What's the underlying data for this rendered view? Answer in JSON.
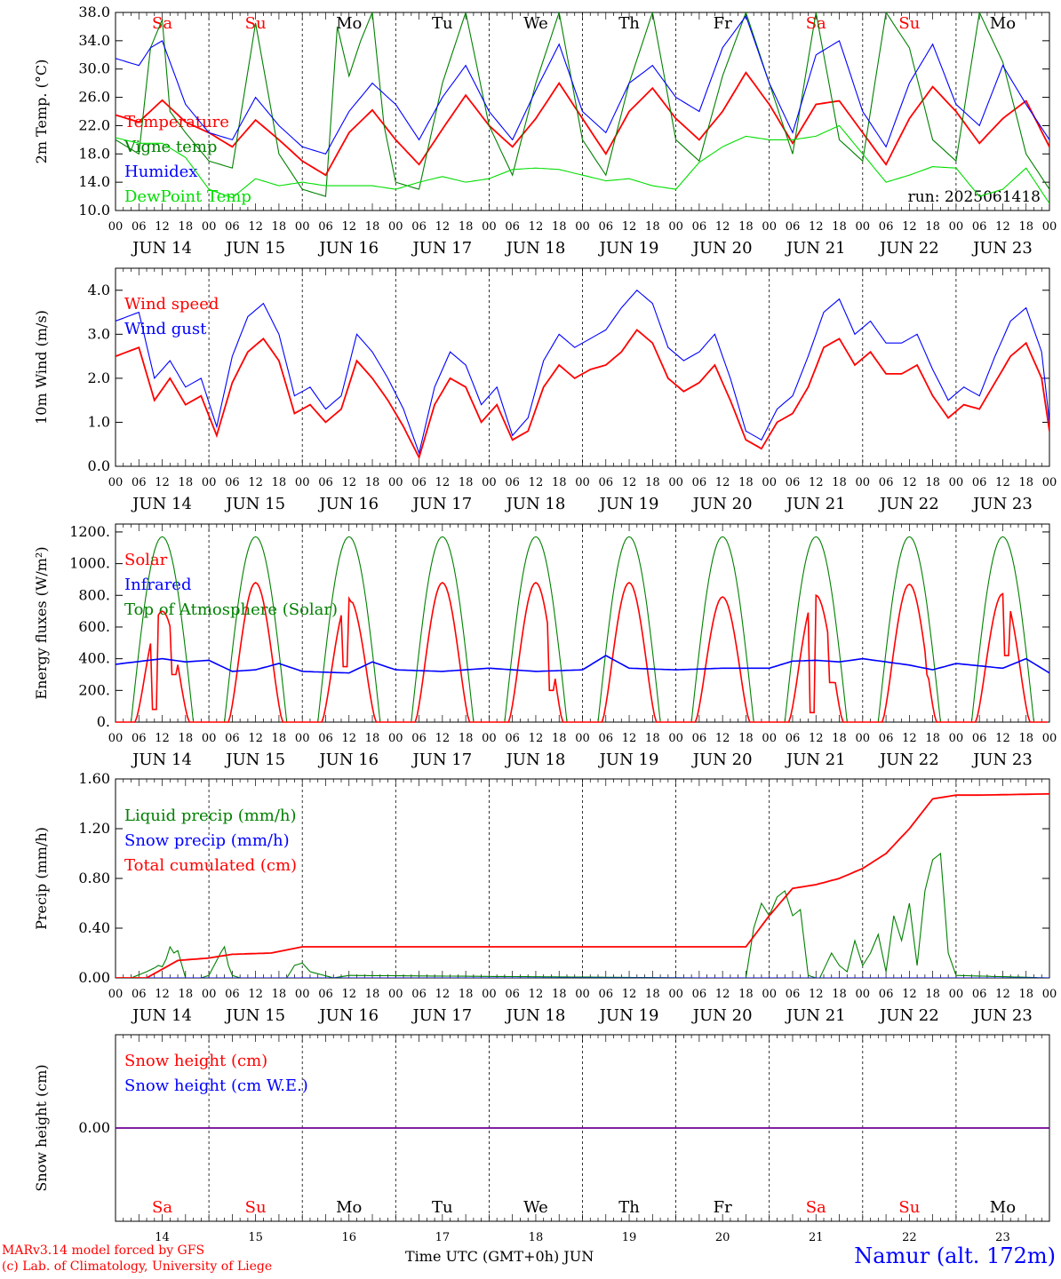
{
  "run": "run: 2025061418",
  "days": [
    "14",
    "15",
    "16",
    "17",
    "18",
    "19",
    "20",
    "21",
    "22",
    "23"
  ],
  "day_month_labels": [
    "JUN 14",
    "JUN 15",
    "JUN 16",
    "JUN 17",
    "JUN 18",
    "JUN 19",
    "JUN 20",
    "JUN 21",
    "JUN 22",
    "JUN 23"
  ],
  "weekday_labels": [
    "Sa",
    "Su",
    "Mo",
    "Tu",
    "We",
    "Th",
    "Fr",
    "Sa",
    "Su",
    "Mo"
  ],
  "weekend_flags": [
    true,
    true,
    false,
    false,
    false,
    false,
    false,
    true,
    true,
    false
  ],
  "hour_ticks": [
    "00",
    "06",
    "12",
    "18"
  ],
  "final_tick": "00",
  "colors": {
    "red": "#ff0000",
    "green": "#008000",
    "blue": "#0000ff",
    "lightgreen": "#00dd00",
    "weekday": "#000000"
  },
  "footer": {
    "line1": "MARv3.14 model forced by GFS",
    "line2": "(c) Lab. of Climatology, University of Liege",
    "xlabel": "Time UTC (GMT+0h) JUN",
    "station": "Namur (alt. 172m)"
  },
  "chart_data": [
    {
      "type": "line",
      "ylabel": "2m Temp. (°C)",
      "ylim": [
        10,
        38
      ],
      "yticks": [
        "10.0",
        "14.0",
        "18.0",
        "22.0",
        "26.0",
        "30.0",
        "34.0",
        "38.0"
      ],
      "x_unit": "hours since JUN 14 00 UTC",
      "series": [
        {
          "name": "Temperature",
          "color": "red",
          "x": [
            0,
            6,
            12,
            18,
            24,
            30,
            36,
            42,
            48,
            54,
            60,
            66,
            72,
            78,
            84,
            90,
            96,
            102,
            108,
            114,
            120,
            126,
            132,
            138,
            144,
            150,
            156,
            162,
            168,
            174,
            180,
            186,
            192,
            198,
            204,
            210,
            216,
            222,
            228,
            234,
            240
          ],
          "values": [
            23.5,
            22.5,
            25.6,
            22.5,
            21,
            19,
            22.8,
            20,
            17,
            15,
            21,
            24.2,
            20,
            16.5,
            21.5,
            26.3,
            22,
            19,
            23,
            28,
            23,
            18,
            24,
            27.3,
            23,
            20,
            24,
            29.5,
            25,
            19.5,
            25,
            25.5,
            21,
            16.5,
            23,
            27.5,
            24,
            19.5,
            23,
            25.5,
            19
          ]
        },
        {
          "name": "Vigne temp",
          "color": "green",
          "x": [
            0,
            6,
            9,
            12,
            14,
            18,
            24,
            30,
            36,
            42,
            48,
            54,
            57,
            60,
            63,
            66,
            69,
            72,
            78,
            84,
            90,
            96,
            102,
            108,
            114,
            120,
            126,
            132,
            138,
            144,
            150,
            156,
            162,
            168,
            174,
            180,
            186,
            192,
            198,
            204,
            210,
            216,
            222,
            228,
            234,
            240
          ],
          "values": [
            20,
            18,
            33,
            37,
            24,
            21,
            17,
            16,
            36.5,
            18,
            13,
            12,
            36,
            29,
            34,
            38,
            22,
            14,
            13,
            28,
            38,
            22,
            15,
            28,
            38,
            20,
            15,
            28,
            38,
            20,
            17,
            29,
            38,
            28,
            18,
            38,
            20,
            17,
            38,
            33,
            20,
            17,
            38,
            31,
            18,
            13
          ]
        },
        {
          "name": "Humidex",
          "color": "blue",
          "x": [
            0,
            6,
            9,
            12,
            18,
            24,
            30,
            36,
            42,
            48,
            54,
            60,
            66,
            72,
            78,
            84,
            90,
            96,
            102,
            108,
            114,
            120,
            126,
            132,
            138,
            144,
            150,
            156,
            162,
            168,
            174,
            180,
            186,
            192,
            198,
            204,
            210,
            216,
            222,
            228,
            234,
            240
          ],
          "values": [
            31.5,
            30.5,
            33,
            34,
            25,
            21,
            20,
            26,
            22,
            19,
            18,
            24,
            28,
            25,
            20,
            26,
            30.5,
            24,
            20,
            27,
            33.5,
            24,
            21,
            28,
            30.5,
            26,
            24,
            33,
            37.5,
            28,
            21,
            32,
            34,
            24,
            19,
            28,
            33.5,
            25,
            22,
            30.5,
            25,
            20
          ]
        },
        {
          "name": "DewPoint Temp",
          "color": "lightgreen",
          "x": [
            0,
            6,
            12,
            18,
            24,
            30,
            36,
            42,
            48,
            54,
            60,
            66,
            72,
            78,
            84,
            90,
            96,
            102,
            108,
            114,
            120,
            126,
            132,
            138,
            144,
            150,
            156,
            162,
            168,
            174,
            180,
            186,
            192,
            198,
            204,
            210,
            216,
            222,
            228,
            234,
            240
          ],
          "values": [
            20.3,
            19.5,
            19.5,
            17.5,
            13,
            11.8,
            14.5,
            13.5,
            14,
            13.5,
            13.5,
            13.5,
            13,
            14,
            14.8,
            14,
            14.5,
            15.8,
            16,
            15.8,
            15,
            14.2,
            14.5,
            13.5,
            13,
            16.8,
            19,
            20.5,
            20,
            20,
            20.5,
            22,
            18,
            14,
            15,
            16.2,
            16,
            12,
            13,
            16,
            11
          ]
        }
      ]
    },
    {
      "type": "line",
      "ylabel": "10m Wind (m/s)",
      "ylim": [
        0,
        4.5
      ],
      "yticks": [
        "0.0",
        "1.0",
        "2.0",
        "3.0",
        "4.0"
      ],
      "x_unit": "hours since JUN 14 00 UTC",
      "series": [
        {
          "name": "Wind speed",
          "color": "red",
          "x": [
            0,
            6,
            10,
            14,
            18,
            22,
            26,
            30,
            34,
            38,
            42,
            46,
            50,
            54,
            58,
            62,
            66,
            70,
            74,
            78,
            82,
            86,
            90,
            94,
            98,
            102,
            106,
            110,
            114,
            118,
            122,
            126,
            130,
            134,
            138,
            142,
            146,
            150,
            154,
            158,
            162,
            166,
            170,
            174,
            178,
            182,
            186,
            190,
            194,
            198,
            202,
            206,
            210,
            214,
            218,
            222,
            226,
            230,
            234,
            238,
            240
          ],
          "values": [
            2.5,
            2.7,
            1.5,
            2,
            1.4,
            1.6,
            0.7,
            1.9,
            2.6,
            2.9,
            2.4,
            1.2,
            1.4,
            1.0,
            1.3,
            2.4,
            2.0,
            1.5,
            0.9,
            0.2,
            1.4,
            2.0,
            1.8,
            1.0,
            1.4,
            0.6,
            0.8,
            1.8,
            2.3,
            2.0,
            2.2,
            2.3,
            2.6,
            3.1,
            2.8,
            2.0,
            1.7,
            1.9,
            2.3,
            1.5,
            0.6,
            0.4,
            1.0,
            1.2,
            1.8,
            2.7,
            2.9,
            2.3,
            2.6,
            2.1,
            2.1,
            2.3,
            1.6,
            1.1,
            1.4,
            1.3,
            1.9,
            2.5,
            2.8,
            2.0,
            0.8
          ]
        },
        {
          "name": "Wind gust",
          "color": "blue",
          "x": [
            0,
            6,
            10,
            14,
            18,
            22,
            26,
            30,
            34,
            38,
            42,
            46,
            50,
            54,
            58,
            62,
            66,
            70,
            74,
            78,
            82,
            86,
            90,
            94,
            98,
            102,
            106,
            110,
            114,
            118,
            122,
            126,
            130,
            134,
            138,
            142,
            146,
            150,
            154,
            158,
            162,
            166,
            170,
            174,
            178,
            182,
            186,
            190,
            194,
            198,
            202,
            206,
            210,
            214,
            218,
            222,
            226,
            230,
            234,
            238,
            240
          ],
          "values": [
            3.3,
            3.5,
            2.0,
            2.4,
            1.8,
            2.0,
            0.9,
            2.5,
            3.4,
            3.7,
            3.0,
            1.6,
            1.8,
            1.3,
            1.6,
            3.0,
            2.6,
            2.0,
            1.3,
            0.3,
            1.8,
            2.6,
            2.3,
            1.4,
            1.8,
            0.7,
            1.1,
            2.4,
            3.0,
            2.7,
            2.9,
            3.1,
            3.6,
            4.0,
            3.7,
            2.7,
            2.4,
            2.6,
            3.0,
            2.0,
            0.8,
            0.6,
            1.3,
            1.6,
            2.5,
            3.5,
            3.8,
            3.0,
            3.3,
            2.8,
            2.8,
            3.0,
            2.2,
            1.5,
            1.8,
            1.6,
            2.5,
            3.3,
            3.6,
            2.6,
            1.0
          ]
        }
      ]
    },
    {
      "type": "line",
      "ylabel": "Energy fluxes (W/m²)",
      "ylim": [
        0,
        1250
      ],
      "yticks": [
        "0.",
        "200.",
        "400.",
        "600.",
        "800.",
        "1000.",
        "1200."
      ],
      "x_unit": "hours since JUN 14 00 UTC",
      "daily_peaks": {
        "toa_peak": 1170,
        "toa_start_hour": 4,
        "toa_end_hour": 20,
        "solar_peaks": [
          700,
          880,
          780,
          880,
          880,
          880,
          790,
          800,
          870,
          810
        ],
        "solar_dips": [
          {
            "day": 0,
            "hour": 10,
            "value": 80
          },
          {
            "day": 0,
            "hour": 15,
            "value": 300
          },
          {
            "day": 2,
            "hour": 11,
            "value": 350
          },
          {
            "day": 2,
            "hour": 13,
            "value": 760
          },
          {
            "day": 4,
            "hour": 16,
            "value": 200
          },
          {
            "day": 7,
            "hour": 11,
            "value": 60
          },
          {
            "day": 7,
            "hour": 14,
            "value": 780
          },
          {
            "day": 7,
            "hour": 16,
            "value": 250
          },
          {
            "day": 8,
            "hour": 17,
            "value": 300
          },
          {
            "day": 9,
            "hour": 13,
            "value": 420
          },
          {
            "day": 9,
            "hour": 15,
            "value": 750
          }
        ]
      },
      "series": [
        {
          "name": "Solar",
          "color": "red",
          "values": []
        },
        {
          "name": "Infrared",
          "color": "blue",
          "x": [
            0,
            12,
            18,
            24,
            30,
            36,
            42,
            48,
            60,
            66,
            72,
            84,
            96,
            102,
            108,
            120,
            126,
            132,
            144,
            156,
            168,
            174,
            180,
            186,
            192,
            204,
            210,
            216,
            228,
            234,
            240
          ],
          "values": [
            365,
            400,
            380,
            390,
            320,
            330,
            370,
            320,
            310,
            380,
            330,
            320,
            340,
            330,
            320,
            330,
            420,
            340,
            330,
            340,
            340,
            385,
            390,
            380,
            400,
            360,
            330,
            370,
            340,
            400,
            310
          ]
        },
        {
          "name": "Top of Atmosphere (Solar)",
          "color": "green",
          "values": []
        }
      ]
    },
    {
      "type": "line",
      "ylabel": "Precip (mm/h)",
      "ylim": [
        0,
        1.6
      ],
      "yticks": [
        "0.00",
        "0.40",
        "0.80",
        "1.20",
        "1.60"
      ],
      "x_unit": "hours since JUN 14 00 UTC",
      "series": [
        {
          "name": "Liquid precip (mm/h)",
          "color": "green",
          "x": [
            0,
            4,
            8,
            10,
            11,
            12,
            13,
            14,
            15,
            16,
            18,
            22,
            24,
            27,
            28,
            29,
            30,
            32,
            36,
            40,
            44,
            46,
            48,
            50,
            56,
            60,
            150,
            162,
            164,
            166,
            168,
            170,
            172,
            174,
            176,
            178,
            180,
            181,
            184,
            186,
            188,
            190,
            192,
            194,
            196,
            198,
            200,
            202,
            204,
            206,
            208,
            210,
            212,
            214,
            216,
            240
          ],
          "values": [
            0,
            0,
            0.05,
            0.08,
            0.1,
            0.09,
            0.15,
            0.25,
            0.2,
            0.22,
            0,
            0,
            0.02,
            0.2,
            0.25,
            0.1,
            0.02,
            0,
            0,
            0,
            0,
            0.1,
            0.12,
            0.05,
            0,
            0.02,
            0,
            0,
            0.4,
            0.6,
            0.5,
            0.65,
            0.7,
            0.5,
            0.55,
            0.02,
            0,
            0,
            0.2,
            0.1,
            0.05,
            0.3,
            0.1,
            0.2,
            0.35,
            0.05,
            0.5,
            0.3,
            0.6,
            0.1,
            0.7,
            0.95,
            1.0,
            0.2,
            0.02,
            0
          ]
        },
        {
          "name": "Snow precip (mm/h)",
          "color": "blue",
          "x": [
            0,
            240
          ],
          "values": [
            0,
            0
          ]
        },
        {
          "name": "Total cumulated (cm)",
          "color": "red",
          "x": [
            0,
            8,
            16,
            24,
            30,
            40,
            48,
            100,
            160,
            162,
            168,
            174,
            180,
            186,
            192,
            198,
            204,
            210,
            216,
            222,
            240
          ],
          "values": [
            0,
            0,
            0.14,
            0.16,
            0.19,
            0.2,
            0.25,
            0.25,
            0.25,
            0.25,
            0.5,
            0.72,
            0.75,
            0.8,
            0.88,
            1.0,
            1.2,
            1.44,
            1.47,
            1.47,
            1.48
          ]
        }
      ]
    },
    {
      "type": "line",
      "ylabel": "Snow height (cm)",
      "ylim": [
        -1,
        1
      ],
      "yticks": [
        "0.00"
      ],
      "x_unit": "hours since JUN 14 00 UTC",
      "series": [
        {
          "name": "Snow height (cm)",
          "color": "red",
          "x": [
            0,
            240
          ],
          "values": [
            0,
            0
          ]
        },
        {
          "name": "Snow height (cm W.E.)",
          "color": "blue",
          "x": [
            0,
            240
          ],
          "values": [
            0,
            0
          ]
        }
      ]
    }
  ]
}
